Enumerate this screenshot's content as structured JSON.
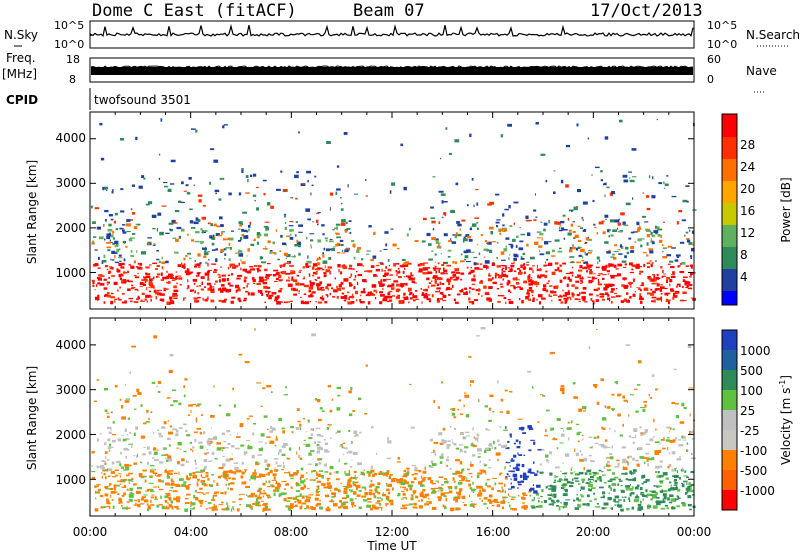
{
  "header": {
    "station": "Dome C East (fitACF)",
    "beam": "Beam 07",
    "date": "17/Oct/2013"
  },
  "strip": {
    "nsky_label": "N.Sky",
    "nsky_ticks": [
      "10^5",
      "10^0"
    ],
    "nsearch_label": "N.Search",
    "nsearch_ticks": [
      "10^5",
      "10^0"
    ],
    "freq_label": "Freq.",
    "freq_unit": "[MHz]",
    "freq_ticks": [
      "18",
      "8"
    ],
    "nave_label": "Nave",
    "nave_ticks": [
      "60",
      "0"
    ],
    "cpid_label": "CPID",
    "cpid_text": "twofsound 3501"
  },
  "colors": {
    "power_scale": [
      "#0000ff",
      "#2040a0",
      "#2e8b57",
      "#5fb05f",
      "#c8c800",
      "#ffa500",
      "#ff7000",
      "#ff3000",
      "#ff0000"
    ],
    "velocity_scale": [
      "#2040c0",
      "#2060a0",
      "#2e8b57",
      "#60c040",
      "#c0c0c0",
      "#c8c8c0",
      "#ff8000",
      "#ff6000",
      "#ff0000"
    ]
  },
  "chart_data": [
    {
      "type": "heatmap",
      "name": "power",
      "ylabel": "Slant Range [km]",
      "xlabel": "Time UT",
      "y_ticks": [
        "1000",
        "2000",
        "3000",
        "4000"
      ],
      "x_ticks": [
        "00:00",
        "04:00",
        "08:00",
        "12:00",
        "16:00",
        "20:00",
        "00:00"
      ],
      "ylim": [
        180,
        4600
      ],
      "xlim": [
        0,
        24
      ],
      "colorbar": {
        "title": "Power [dB]",
        "ticks": [
          "28",
          "24",
          "20",
          "16",
          "12",
          "8",
          "4"
        ]
      }
    },
    {
      "type": "heatmap",
      "name": "velocity",
      "ylabel": "Slant Range [km]",
      "xlabel": "Time UT",
      "y_ticks": [
        "1000",
        "2000",
        "3000",
        "4000"
      ],
      "x_ticks": [
        "00:00",
        "04:00",
        "08:00",
        "12:00",
        "16:00",
        "20:00",
        "00:00"
      ],
      "ylim": [
        180,
        4600
      ],
      "xlim": [
        0,
        24
      ],
      "colorbar": {
        "title": "Velocity [m s",
        "title_sup": "-1",
        "title_end": "]",
        "ticks": [
          "1000",
          "500",
          "100",
          "25",
          "-25",
          "-100",
          "-500",
          "-1000"
        ]
      }
    }
  ]
}
